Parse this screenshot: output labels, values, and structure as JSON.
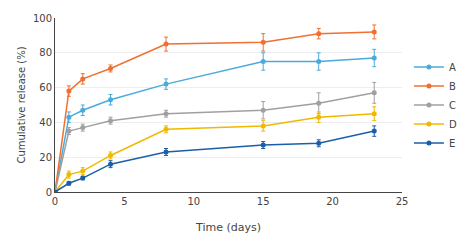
{
  "chart_data": {
    "type": "line",
    "xlabel": "Time (days)",
    "ylabel": "Cumulative release (%)",
    "xlim": [
      0,
      25
    ],
    "ylim": [
      0,
      100
    ],
    "xticks": [
      0,
      5,
      10,
      15,
      20,
      25
    ],
    "yticks": [
      0,
      20,
      40,
      60,
      80,
      100
    ],
    "grid": "y",
    "legend": "right",
    "marker": "circle",
    "x": [
      0,
      1,
      2,
      4,
      8,
      15,
      19,
      23
    ],
    "series": [
      {
        "name": "A",
        "color": "#4AABDB",
        "values": [
          0,
          43,
          47,
          53,
          62,
          75,
          75,
          77
        ],
        "yerr": [
          0,
          3,
          3,
          3,
          3,
          5,
          5,
          5
        ]
      },
      {
        "name": "B",
        "color": "#F07030",
        "values": [
          0,
          58,
          65,
          71,
          85,
          86,
          91,
          92
        ],
        "yerr": [
          0,
          3,
          3,
          2,
          4,
          5,
          3,
          4
        ]
      },
      {
        "name": "C",
        "color": "#A0A0A0",
        "values": [
          0,
          35,
          37,
          41,
          45,
          47,
          51,
          57
        ],
        "yerr": [
          0,
          2,
          2,
          2,
          2,
          5,
          6,
          6
        ]
      },
      {
        "name": "D",
        "color": "#F0B800",
        "values": [
          0,
          10,
          12,
          21,
          36,
          38,
          43,
          45
        ],
        "yerr": [
          0,
          2,
          2,
          2,
          2,
          3,
          3,
          4
        ]
      },
      {
        "name": "E",
        "color": "#1A5FA8",
        "values": [
          0,
          5,
          8,
          16,
          23,
          27,
          28,
          35
        ],
        "yerr": [
          0,
          1,
          1,
          2,
          2,
          2,
          2,
          3
        ]
      }
    ]
  }
}
